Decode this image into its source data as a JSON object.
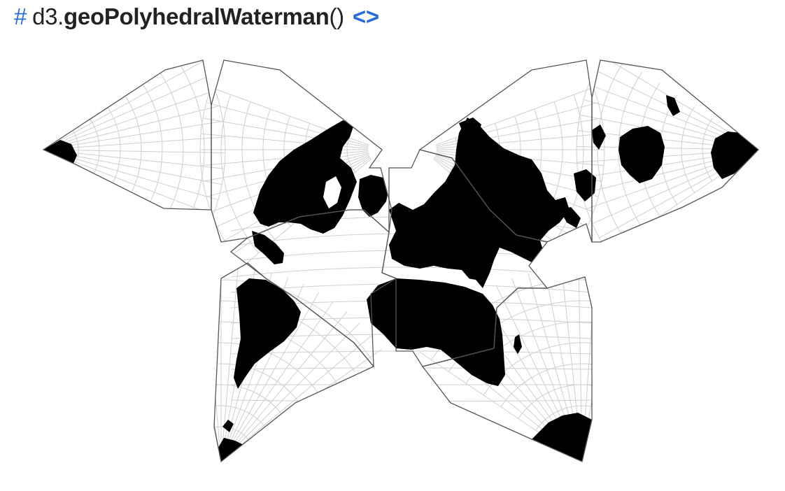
{
  "heading": {
    "anchor": "#",
    "namespace": "d3.",
    "function": "geoPolyhedralWaterman",
    "parens": "()",
    "source_link": "<>"
  },
  "map": {
    "projection": "polyhedral-waterman-butterfly",
    "land_color": "#000000",
    "graticule_color": "#cfcfcf",
    "border_color": "#555555",
    "link_color": "#2b6bd6"
  }
}
